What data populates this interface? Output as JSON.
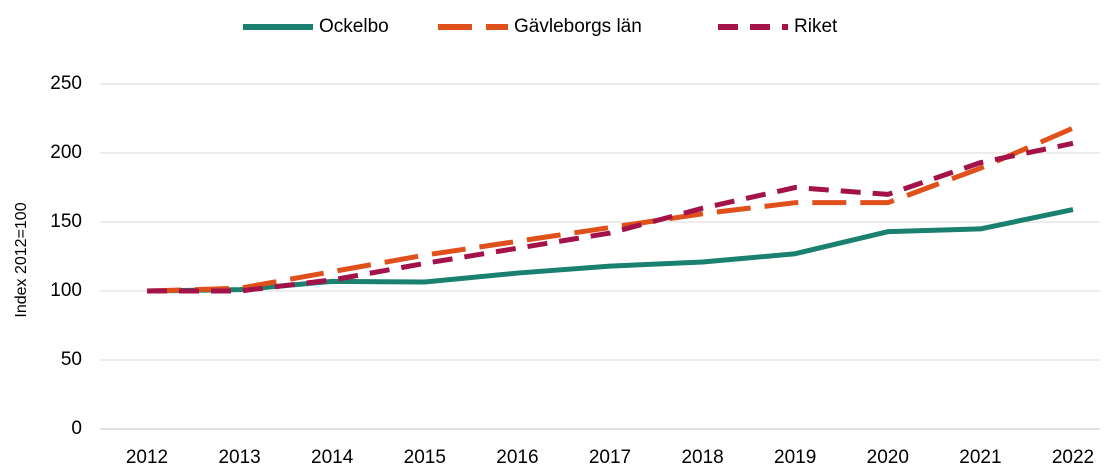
{
  "chart_data": {
    "type": "line",
    "ylabel": "Index 2012=100",
    "categories": [
      "2012",
      "2013",
      "2014",
      "2015",
      "2016",
      "2017",
      "2018",
      "2019",
      "2020",
      "2021",
      "2022"
    ],
    "series": [
      {
        "name": "Ockelbo",
        "color": "#1a8070",
        "line_style": "solid",
        "values": [
          100,
          101,
          107,
          106.5,
          113,
          118,
          121,
          127,
          143,
          145,
          159
        ]
      },
      {
        "name": "Gävleborgs län",
        "color": "#e0501a",
        "line_style": "long_dash",
        "values": [
          100,
          102,
          114,
          126,
          136,
          146,
          156,
          164,
          164,
          189,
          218
        ]
      },
      {
        "name": "Riket",
        "color": "#a3134a",
        "line_style": "dash",
        "values": [
          100,
          100,
          108,
          120,
          131,
          142,
          160,
          175,
          170,
          193,
          207
        ]
      }
    ],
    "ylim": [
      0,
      250
    ],
    "yticks": [
      0,
      50,
      100,
      150,
      200,
      250
    ],
    "grid": true,
    "legend": "top"
  }
}
